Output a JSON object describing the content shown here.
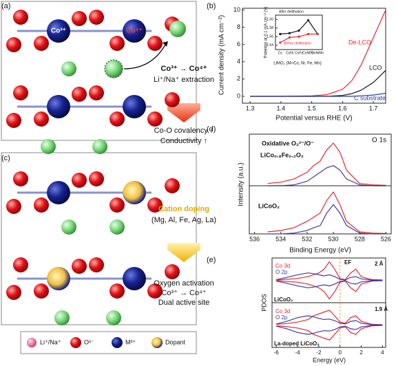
{
  "panels": {
    "labels": [
      "(a)",
      "(b)",
      "(c)",
      "(d)",
      "(e)"
    ],
    "a": {
      "texts": [
        "Co³⁺",
        "Co⁴⁺",
        "Co³⁺ → Co⁴⁺",
        "Li⁺/Na⁺ extraction",
        "Co-O covalency ↑",
        "Conductivity ↑"
      ]
    },
    "c": {
      "texts": [
        "Cation doping",
        "(Mg, Al, Fe, Ag, La)",
        "Oxygen activation",
        "Co³⁺ → Co⁴⁺",
        "Dual active site"
      ]
    },
    "legend": [
      "Li⁺/Na⁺",
      "O²⁻",
      "M³⁺",
      "Dopant"
    ]
  },
  "chart_data": [
    {
      "type": "line",
      "xlabel": "Potential versus RHE (V)",
      "ylabel": "Current density (mA cm⁻²)",
      "x": [
        1.3,
        1.4,
        1.5,
        1.55,
        1.6,
        1.63,
        1.66,
        1.7,
        1.74
      ],
      "series": [
        {
          "name": "De-LCO",
          "color": "#e8262c",
          "values": [
            0,
            0,
            0.05,
            0.2,
            0.8,
            1.8,
            3.6,
            6.8,
            10
          ]
        },
        {
          "name": "LCO",
          "color": "#111111",
          "values": [
            0,
            0,
            0,
            0,
            0.1,
            0.3,
            0.7,
            1.6,
            3.0
          ]
        },
        {
          "name": "C substrate",
          "color": "#2a3aa8",
          "values": [
            0,
            0,
            0,
            0,
            0,
            0,
            0.05,
            0.15,
            0.35
          ]
        }
      ],
      "xlim": [
        1.275,
        1.74
      ],
      "ylim": [
        -0.8,
        10.2
      ],
      "xticks": [
        1.3,
        1.4,
        1.5,
        1.6,
        1.7
      ],
      "yticks": [
        0,
        2,
        4,
        6,
        8,
        10
      ]
    },
    {
      "type": "line",
      "xlabel": "LiMO₂ (M=Co, Ni, Fe, Mn)",
      "ylabel": "Potential at 0.1 mA cm⁻² (V)",
      "categories": [
        "Co",
        "CoNi",
        "CoFe",
        "CoNiFe",
        "CoNiMn"
      ],
      "series": [
        {
          "name": "After delithiation",
          "color": "#111111",
          "values": [
            1.566,
            1.568,
            1.574,
            1.598,
            1.566
          ]
        },
        {
          "name": "Before delithiation",
          "color": "#e8262c",
          "values": [
            1.546,
            1.558,
            1.56,
            1.566,
            1.566
          ]
        }
      ],
      "ylim": [
        1.53,
        1.61
      ],
      "yticks": [
        1.54,
        1.56,
        1.58,
        {
          "value": 1.6,
          "label": "1.60"
        }
      ]
    },
    {
      "type": "line",
      "title": "O 1s",
      "ylabel": "Intensity (a.u.)",
      "annotations": [
        "Oxidative O₂²⁻/O⁻",
        "LiCo₀.₈Fe₀.₂O₂"
      ],
      "x": [
        535,
        534,
        533,
        532,
        531.5,
        531,
        530.5,
        530,
        529.5,
        529,
        528,
        527,
        526
      ],
      "series": [
        {
          "color": "#e8262c",
          "values": [
            0.05,
            0.08,
            0.15,
            0.3,
            0.45,
            0.55,
            0.8,
            0.95,
            0.75,
            0.35,
            0.05,
            0.02,
            0.01
          ]
        },
        {
          "color": "#3a3aa8",
          "values": [
            0,
            0,
            0.02,
            0.1,
            0.2,
            0.3,
            0.4,
            0.45,
            0.35,
            0.15,
            0.02,
            0,
            0
          ]
        }
      ],
      "xlim": [
        536.4,
        525.6
      ],
      "ylim": [
        0,
        1.15
      ]
    },
    {
      "type": "line",
      "xlabel": "Binding Energy (eV)",
      "annotations": [
        "LiCoO₂"
      ],
      "x": [
        535,
        534,
        533,
        532,
        531.5,
        531,
        530.5,
        530,
        529.5,
        529,
        528,
        527,
        526
      ],
      "series": [
        {
          "color": "#e8262c",
          "values": [
            0.05,
            0.08,
            0.15,
            0.3,
            0.4,
            0.5,
            0.8,
            1.0,
            0.7,
            0.3,
            0.05,
            0.02,
            0.01
          ]
        },
        {
          "color": "#3a3aa8",
          "values": [
            0,
            0,
            0.02,
            0.08,
            0.15,
            0.2,
            0.5,
            0.7,
            0.5,
            0.2,
            0.02,
            0,
            0
          ]
        }
      ],
      "xlim": [
        536.4,
        525.6
      ],
      "ylim": [
        0,
        1.15
      ],
      "xticks": [
        536,
        534,
        532,
        530,
        528,
        526
      ]
    },
    {
      "type": "line",
      "ylabel": "PDOS",
      "annotations": [
        "EF",
        "2 Å",
        "LiCoO₂"
      ],
      "x": [
        -6,
        -5,
        -4,
        -3,
        -2.5,
        -2,
        -1.5,
        -1,
        -0.5,
        0,
        0.5,
        1,
        1.5,
        2,
        3,
        4
      ],
      "series": [
        {
          "name": "Co 3d",
          "color": "#e8262c",
          "values": [
            0.1,
            0.3,
            0.5,
            1,
            1.5,
            2,
            3,
            5,
            3,
            0.5,
            0.2,
            2,
            3,
            1,
            0.2,
            0.1
          ]
        },
        {
          "name": "O 2p",
          "color": "#3a3aa8",
          "values": [
            0.2,
            0.8,
            1.5,
            2,
            1.8,
            1.5,
            1.2,
            1.5,
            1,
            0.3,
            0.1,
            0.8,
            1,
            0.4,
            0.1,
            0.05
          ]
        },
        {
          "color": "#e8262c",
          "values": [
            -0.1,
            -0.3,
            -0.5,
            -1,
            -1.5,
            -2,
            -3,
            -5,
            -3,
            -0.5,
            -0.2,
            -2,
            -3,
            -1,
            -0.2,
            -0.1
          ]
        },
        {
          "color": "#3a3aa8",
          "values": [
            -0.2,
            -0.8,
            -1.5,
            -2,
            -1.8,
            -1.5,
            -1.2,
            -1.5,
            -1,
            -0.3,
            -0.1,
            -0.8,
            -1,
            -0.4,
            -0.1,
            -0.05
          ]
        }
      ],
      "xlim": [
        -6.4,
        4.3
      ],
      "ylim": [
        -6,
        6
      ]
    },
    {
      "type": "line",
      "xlabel": "Energy (eV)",
      "annotations": [
        "1.9 Å",
        "La-doped LiCoO₂"
      ],
      "x": [
        -6,
        -5,
        -4,
        -3,
        -2.5,
        -2,
        -1.5,
        -1,
        -0.5,
        0,
        0.5,
        1,
        1.5,
        2,
        3,
        4
      ],
      "series": [
        {
          "name": "Co 3d",
          "color": "#e8262c",
          "values": [
            0.2,
            0.4,
            0.8,
            1.5,
            2.5,
            3,
            3.5,
            4,
            2.5,
            0.8,
            0.5,
            2,
            2.5,
            1,
            0.2,
            0.1
          ]
        },
        {
          "name": "O 2p",
          "color": "#3a3aa8",
          "values": [
            0.3,
            1,
            2,
            2.5,
            2.2,
            1.8,
            1.5,
            1.6,
            1.2,
            0.5,
            0.3,
            1,
            1.2,
            0.5,
            0.1,
            0.05
          ]
        },
        {
          "color": "#e8262c",
          "values": [
            -0.2,
            -0.4,
            -0.8,
            -1.5,
            -2.5,
            -3,
            -3.5,
            -4,
            -2.5,
            -0.8,
            -0.5,
            -2,
            -2.5,
            -1,
            -0.2,
            -0.1
          ]
        },
        {
          "color": "#3a3aa8",
          "values": [
            -0.3,
            -1,
            -2,
            -2.5,
            -2.2,
            -1.8,
            -1.5,
            -1.6,
            -1.2,
            -0.5,
            -0.3,
            -1,
            -1.2,
            -0.5,
            -0.1,
            -0.05
          ]
        }
      ],
      "xlim": [
        -6.4,
        4.3
      ],
      "ylim": [
        -6,
        6
      ],
      "xticks": [
        -6,
        -4,
        -2,
        0,
        2,
        4
      ]
    }
  ]
}
